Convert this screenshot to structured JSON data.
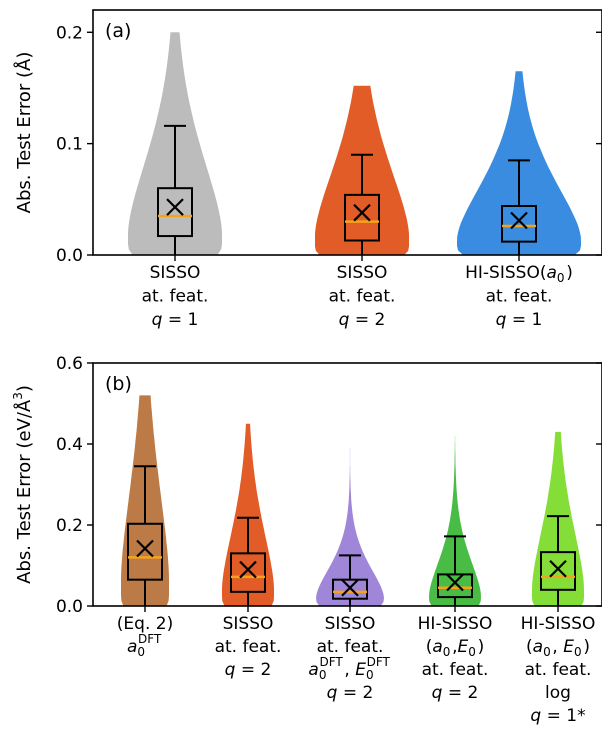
{
  "chart_data": [
    {
      "type": "violin",
      "panel_label": "(a)",
      "ylabel": "Abs. Test Error (Å)",
      "ylim": [
        0,
        0.22
      ],
      "yticks": [
        0.0,
        0.1,
        0.2
      ],
      "ytick_labels": [
        "0.0",
        "0.1",
        "0.2"
      ],
      "grid": false,
      "categories": [
        {
          "lines": [
            "SISSO",
            "at. feat.",
            "q = 1"
          ]
        },
        {
          "lines": [
            "SISSO",
            "at. feat.",
            "q = 2"
          ]
        },
        {
          "lines": [
            "HI-SISSO(a0)",
            "at. feat.",
            "q = 1"
          ]
        }
      ],
      "series": [
        {
          "color": "#b8b8b8",
          "violin_max": 0.2,
          "whisker_low": 0.0,
          "q1": 0.017,
          "median": 0.035,
          "q3": 0.06,
          "whisker_high": 0.116,
          "mean": 0.043
        },
        {
          "color": "#e0531c",
          "violin_max": 0.152,
          "whisker_low": 0.0,
          "q1": 0.013,
          "median": 0.03,
          "q3": 0.054,
          "whisker_high": 0.09,
          "mean": 0.038
        },
        {
          "color": "#2e86de",
          "violin_max": 0.165,
          "whisker_low": 0.0,
          "q1": 0.012,
          "median": 0.026,
          "q3": 0.044,
          "whisker_high": 0.085,
          "mean": 0.031
        }
      ]
    },
    {
      "type": "violin",
      "panel_label": "(b)",
      "ylabel": "Abs. Test Error (eV/Å³)",
      "ylim": [
        0,
        0.6
      ],
      "yticks": [
        0.0,
        0.2,
        0.4,
        0.6
      ],
      "ytick_labels": [
        "0.0",
        "0.2",
        "0.4",
        "0.6"
      ],
      "grid": false,
      "categories": [
        {
          "lines": [
            "(Eq. 2)",
            "a0DFT"
          ]
        },
        {
          "lines": [
            "SISSO",
            "at. feat.",
            "q = 2"
          ]
        },
        {
          "lines": [
            "SISSO",
            "at. feat.",
            "a0DFT, E0DFT",
            "q = 2"
          ]
        },
        {
          "lines": [
            "HI-SISSO",
            "(a0,E0)",
            "at. feat.",
            "q = 2"
          ]
        },
        {
          "lines": [
            "HI-SISSO",
            "(a0, E0)",
            "at. feat.",
            "log",
            "q = 1*"
          ]
        }
      ],
      "series": [
        {
          "color": "#b8743c",
          "violin_max": 0.52,
          "whisker_low": 0.0,
          "q1": 0.065,
          "median": 0.12,
          "q3": 0.203,
          "whisker_high": 0.345,
          "mean": 0.142
        },
        {
          "color": "#e0531c",
          "violin_max": 0.45,
          "whisker_low": 0.0,
          "q1": 0.035,
          "median": 0.072,
          "q3": 0.13,
          "whisker_high": 0.218,
          "mean": 0.09
        },
        {
          "color": "#9b7fd6",
          "violin_max": 0.39,
          "whisker_low": 0.0,
          "q1": 0.018,
          "median": 0.035,
          "q3": 0.065,
          "whisker_high": 0.125,
          "mean": 0.045
        },
        {
          "color": "#3fb83c",
          "violin_max": 0.42,
          "whisker_low": 0.0,
          "q1": 0.022,
          "median": 0.045,
          "q3": 0.078,
          "whisker_high": 0.172,
          "mean": 0.058
        },
        {
          "color": "#7ddc2c",
          "violin_max": 0.43,
          "whisker_low": 0.0,
          "q1": 0.04,
          "median": 0.072,
          "q3": 0.133,
          "whisker_high": 0.222,
          "mean": 0.092
        }
      ]
    }
  ],
  "colors": {
    "median_line": "#f5a31a",
    "box_edge": "#000000"
  }
}
